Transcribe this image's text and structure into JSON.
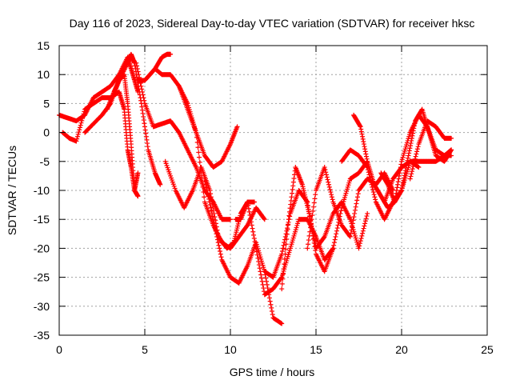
{
  "chart_data": {
    "type": "scatter",
    "title": "Day 116 of 2023, Sidereal Day-to-day VTEC variation (SDTVAR) for receiver hksc",
    "xlabel": "GPS time / hours",
    "ylabel": "SDTVAR / TECUs",
    "xlim": [
      0,
      25
    ],
    "ylim": [
      -35,
      15
    ],
    "xticks": [
      0,
      5,
      10,
      15,
      20,
      25
    ],
    "yticks": [
      -35,
      -30,
      -25,
      -20,
      -15,
      -10,
      -5,
      0,
      5,
      10,
      15
    ],
    "grid": true,
    "marker": "+",
    "color": "#ff0000",
    "series": [
      {
        "x": [
          0.0,
          0.5,
          1.0,
          1.5,
          2.0,
          2.5,
          3.0,
          3.5,
          4.0,
          4.3,
          4.6
        ],
        "y": [
          3,
          2.5,
          2,
          3,
          6,
          7,
          8,
          10,
          13,
          10,
          7
        ]
      },
      {
        "x": [
          0.2,
          0.6,
          1.0,
          1.5,
          2.0,
          2.5,
          3.0,
          3.5,
          3.8,
          4.0,
          4.2,
          4.4,
          4.6
        ],
        "y": [
          0,
          -1,
          -1.5,
          4,
          5,
          6,
          6,
          7,
          4,
          -3,
          -6,
          -10,
          -11
        ]
      },
      {
        "x": [
          1.5,
          2.0,
          2.5,
          3.0,
          3.5,
          4.0,
          4.2,
          4.4,
          4.8,
          5.2,
          5.6,
          5.9
        ],
        "y": [
          0,
          1.5,
          3,
          5,
          9,
          12,
          13.5,
          12,
          5,
          -3,
          -7,
          -9
        ]
      },
      {
        "x": [
          2.8,
          3.2,
          3.5,
          3.8,
          4.0,
          4.2,
          4.4,
          4.6
        ],
        "y": [
          4,
          7,
          9,
          10,
          5,
          -2,
          -10,
          -7
        ]
      },
      {
        "x": [
          4.6,
          5.0,
          5.3,
          5.6,
          6.0,
          6.3,
          6.5
        ],
        "y": [
          9,
          9,
          10,
          11,
          13,
          13.5,
          13.5
        ]
      },
      {
        "x": [
          4.5,
          5.0,
          5.5,
          6.0,
          6.5,
          7.0,
          7.5,
          8.0,
          8.5,
          9.0,
          9.5,
          10.0
        ],
        "y": [
          12,
          5,
          1,
          1.5,
          2,
          0,
          -3,
          -6,
          -10,
          -12,
          -15,
          -15
        ]
      },
      {
        "x": [
          6.2,
          6.8,
          7.3,
          7.8,
          8.3,
          8.8,
          9.3,
          9.8,
          10.2,
          10.6,
          11.0,
          11.4
        ],
        "y": [
          -5,
          -10,
          -13,
          -10,
          -6,
          -10,
          -18,
          -20,
          -19,
          -14,
          -12,
          -12
        ]
      },
      {
        "x": [
          5.6,
          6.0,
          6.5,
          7.0,
          7.5,
          8.0,
          8.5,
          9.0,
          9.5,
          10.0,
          10.4
        ],
        "y": [
          11,
          10,
          10,
          8,
          4,
          0,
          -4,
          -6,
          -5,
          -2,
          1
        ]
      },
      {
        "x": [
          7.0,
          7.5,
          8.0,
          8.5,
          9.0,
          9.5,
          10.0,
          10.5,
          11.0,
          11.5,
          12.0
        ],
        "y": [
          8,
          5,
          0,
          -12,
          -16,
          -19,
          -20,
          -18,
          -16,
          -13,
          -15
        ]
      },
      {
        "x": [
          8.5,
          9.0,
          9.5,
          10.0,
          10.5,
          11.0,
          11.5,
          12.0,
          12.5,
          13.0
        ],
        "y": [
          -8,
          -15,
          -22,
          -25,
          -26,
          -23,
          -19,
          -24,
          -32,
          -33
        ]
      },
      {
        "x": [
          10.3,
          10.6,
          11.0,
          11.5,
          12.0,
          12.5,
          13.0,
          13.5,
          14.0,
          14.5,
          15.0,
          15.5,
          16.0
        ],
        "y": [
          -15,
          -15,
          -12,
          -20,
          -28,
          -27,
          -25,
          -20,
          -15,
          -15,
          -18,
          -22,
          -20
        ]
      },
      {
        "x": [
          12.0,
          12.5,
          13.0,
          13.5,
          14.0,
          14.5,
          15.0,
          15.5,
          16.0,
          16.5,
          17.0,
          17.5,
          18.0
        ],
        "y": [
          -24,
          -25,
          -21,
          -14,
          -10,
          -12,
          -21,
          -24,
          -20,
          -13,
          -8,
          -7,
          -5
        ]
      },
      {
        "x": [
          13.0,
          13.4,
          13.8,
          14.2,
          14.6,
          15.0,
          15.5,
          16.0,
          16.5,
          17.0,
          17.5,
          18.0
        ],
        "y": [
          -27,
          -15,
          -6,
          -9,
          -14,
          -20,
          -18,
          -14,
          -12,
          -15,
          -20,
          -14
        ]
      },
      {
        "x": [
          14.5,
          15.0,
          15.5,
          16.0,
          16.5,
          17.0,
          17.5,
          18.0,
          18.5,
          19.0,
          19.5
        ],
        "y": [
          -20,
          -10,
          -6,
          -12,
          -16,
          -18,
          -10,
          -8,
          -9,
          -7,
          -10
        ]
      },
      {
        "x": [
          16.5,
          17.0,
          17.5,
          18.0,
          18.5,
          19.0,
          19.5,
          20.0,
          20.5,
          21.0
        ],
        "y": [
          -5,
          -3,
          -4,
          -6,
          -12,
          -15,
          -12,
          -10,
          -5,
          -6
        ]
      },
      {
        "x": [
          17.2,
          17.6,
          18.0,
          18.4,
          18.8,
          19.2,
          19.6,
          20.0,
          20.5,
          21.0,
          21.5,
          22.0,
          22.5,
          22.9
        ],
        "y": [
          3,
          1,
          -5,
          -9,
          -11,
          -13,
          -12,
          -5,
          0,
          3,
          1,
          -3,
          -4,
          -3
        ]
      },
      {
        "x": [
          18.8,
          19.2,
          19.6,
          20.0,
          20.4,
          20.8,
          21.2,
          21.6,
          22.0,
          22.5,
          22.9
        ],
        "y": [
          -7,
          -9,
          -12,
          -10,
          -4,
          2,
          4,
          0,
          -4,
          -5,
          -3
        ]
      },
      {
        "x": [
          19.0,
          19.5,
          20.0,
          20.5,
          21.0,
          21.5,
          22.0,
          22.5,
          22.9
        ],
        "y": [
          -12,
          -8,
          -6,
          -5,
          -5,
          -5,
          -5,
          -4,
          -4
        ]
      },
      {
        "x": [
          20.5,
          21.0,
          21.5,
          22.0,
          22.5,
          22.9
        ],
        "y": [
          -8,
          -2,
          2,
          1,
          -1,
          -1
        ]
      }
    ]
  }
}
